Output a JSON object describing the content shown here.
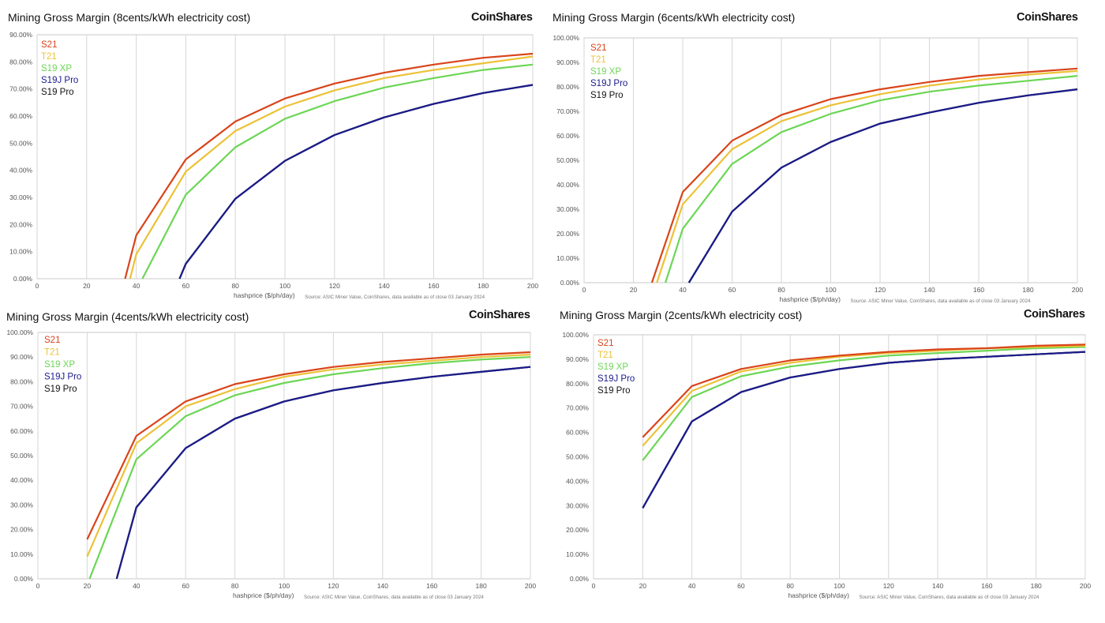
{
  "brand": "CoinShares",
  "series_colors": {
    "S21": "#d9441a",
    "T21": "#ecc238",
    "S19 XP": "#6cd655",
    "S19J Pro": "#1b1b8c",
    "S19 Pro": "#111111"
  },
  "chart_data": [
    {
      "type": "line",
      "title": "Mining Gross Margin (8cents/kWh electricity cost)",
      "xlabel": "hashprice ($/ph/day)",
      "source": "Source: ASIC Miner Value, CoinShares, data available as of close 03 January 2024",
      "xlim": [
        0,
        200
      ],
      "ylim": [
        0,
        90
      ],
      "x_ticks": [
        "0",
        "20",
        "40",
        "60",
        "80",
        "100",
        "120",
        "140",
        "160",
        "180",
        "200"
      ],
      "y_ticks": [
        "0.00%",
        "10.00%",
        "20.00%",
        "30.00%",
        "40.00%",
        "50.00%",
        "60.00%",
        "70.00%",
        "80.00%",
        "90.00%"
      ],
      "legend": "top-left",
      "series": [
        {
          "name": "S21",
          "points": [
            [
              35.5,
              0
            ],
            [
              40,
              16
            ],
            [
              60,
              44
            ],
            [
              80,
              58
            ],
            [
              100,
              66.5
            ],
            [
              120,
              72
            ],
            [
              140,
              76
            ],
            [
              160,
              79
            ],
            [
              180,
              81.5
            ],
            [
              200,
              83
            ]
          ]
        },
        {
          "name": "T21",
          "points": [
            [
              37.5,
              0
            ],
            [
              40,
              9
            ],
            [
              60,
              39.5
            ],
            [
              80,
              54.5
            ],
            [
              100,
              63.5
            ],
            [
              120,
              69.5
            ],
            [
              140,
              74
            ],
            [
              160,
              77
            ],
            [
              180,
              79.5
            ],
            [
              200,
              82
            ]
          ]
        },
        {
          "name": "S19 XP",
          "points": [
            [
              42.5,
              0
            ],
            [
              60,
              31
            ],
            [
              80,
              48.5
            ],
            [
              100,
              59
            ],
            [
              120,
              65.5
            ],
            [
              140,
              70.5
            ],
            [
              160,
              74
            ],
            [
              180,
              77
            ],
            [
              200,
              79
            ]
          ]
        },
        {
          "name": "S19J Pro",
          "points": [
            [
              57.5,
              0
            ],
            [
              60,
              5.5
            ],
            [
              80,
              29.5
            ],
            [
              100,
              43.5
            ],
            [
              120,
              53
            ],
            [
              140,
              59.5
            ],
            [
              160,
              64.5
            ],
            [
              180,
              68.5
            ],
            [
              200,
              71.5
            ]
          ]
        },
        {
          "name": "S19 Pro",
          "points": [
            [
              57.5,
              0
            ],
            [
              60,
              5.5
            ],
            [
              80,
              29.5
            ],
            [
              100,
              43.5
            ],
            [
              120,
              53
            ],
            [
              140,
              59.5
            ],
            [
              160,
              64.5
            ],
            [
              180,
              68.5
            ],
            [
              200,
              71.5
            ]
          ]
        }
      ]
    },
    {
      "type": "line",
      "title": "Mining Gross Margin (6cents/kWh electricity cost)",
      "xlabel": "hashprice ($/ph/day)",
      "source": "Source: ASIC Miner Value, CoinShares, data available as of close 03 January 2024",
      "xlim": [
        0,
        200
      ],
      "ylim": [
        0,
        100
      ],
      "x_ticks": [
        "0",
        "20",
        "40",
        "60",
        "80",
        "100",
        "120",
        "140",
        "160",
        "180",
        "200"
      ],
      "y_ticks": [
        "0.00%",
        "10.00%",
        "20.00%",
        "30.00%",
        "40.00%",
        "50.00%",
        "60.00%",
        "70.00%",
        "80.00%",
        "90.00%",
        "100.00%"
      ],
      "legend": "top-left",
      "series": [
        {
          "name": "S21",
          "points": [
            [
              27.5,
              0
            ],
            [
              40,
              37
            ],
            [
              60,
              58
            ],
            [
              80,
              68.5
            ],
            [
              100,
              75
            ],
            [
              120,
              79
            ],
            [
              140,
              82
            ],
            [
              160,
              84.5
            ],
            [
              180,
              86
            ],
            [
              200,
              87.5
            ]
          ]
        },
        {
          "name": "T21",
          "points": [
            [
              29.5,
              0
            ],
            [
              40,
              32
            ],
            [
              60,
              54.5
            ],
            [
              80,
              66
            ],
            [
              100,
              72.5
            ],
            [
              120,
              77
            ],
            [
              140,
              80.5
            ],
            [
              160,
              83
            ],
            [
              180,
              85
            ],
            [
              200,
              86.5
            ]
          ]
        },
        {
          "name": "S19 XP",
          "points": [
            [
              33,
              0
            ],
            [
              40,
              22
            ],
            [
              60,
              48.5
            ],
            [
              80,
              61.5
            ],
            [
              100,
              69
            ],
            [
              120,
              74.5
            ],
            [
              140,
              78
            ],
            [
              160,
              80.5
            ],
            [
              180,
              82.5
            ],
            [
              200,
              84.5
            ]
          ]
        },
        {
          "name": "S19J Pro",
          "points": [
            [
              42.5,
              0
            ],
            [
              60,
              29
            ],
            [
              80,
              47
            ],
            [
              100,
              57.5
            ],
            [
              120,
              65
            ],
            [
              140,
              69.5
            ],
            [
              160,
              73.5
            ],
            [
              180,
              76.5
            ],
            [
              200,
              79
            ]
          ]
        },
        {
          "name": "S19 Pro",
          "points": [
            [
              42.5,
              0
            ],
            [
              60,
              29
            ],
            [
              80,
              47
            ],
            [
              100,
              57.5
            ],
            [
              120,
              65
            ],
            [
              140,
              69.5
            ],
            [
              160,
              73.5
            ],
            [
              180,
              76.5
            ],
            [
              200,
              79
            ]
          ]
        }
      ]
    },
    {
      "type": "line",
      "title": "Mining Gross Margin (4cents/kWh electricity cost)",
      "xlabel": "hashprice ($/ph/day)",
      "source": "Source: ASIC Miner Value, CoinShares, data available as of close 03 January 2024",
      "xlim": [
        0,
        200
      ],
      "ylim": [
        0,
        100
      ],
      "x_ticks": [
        "0",
        "20",
        "40",
        "60",
        "80",
        "100",
        "120",
        "140",
        "160",
        "180",
        "200"
      ],
      "y_ticks": [
        "0.00%",
        "10.00%",
        "20.00%",
        "30.00%",
        "40.00%",
        "50.00%",
        "60.00%",
        "70.00%",
        "80.00%",
        "90.00%",
        "100.00%"
      ],
      "legend": "top-left",
      "series": [
        {
          "name": "S21",
          "points": [
            [
              20,
              16
            ],
            [
              40,
              58
            ],
            [
              60,
              72
            ],
            [
              80,
              79
            ],
            [
              100,
              83
            ],
            [
              120,
              86
            ],
            [
              140,
              88
            ],
            [
              160,
              89.5
            ],
            [
              180,
              91
            ],
            [
              200,
              92
            ]
          ]
        },
        {
          "name": "T21",
          "points": [
            [
              20,
              9
            ],
            [
              40,
              55
            ],
            [
              60,
              70
            ],
            [
              80,
              77
            ],
            [
              100,
              82
            ],
            [
              120,
              85
            ],
            [
              140,
              87
            ],
            [
              160,
              88.5
            ],
            [
              180,
              90
            ],
            [
              200,
              91
            ]
          ]
        },
        {
          "name": "S19 XP",
          "points": [
            [
              21,
              0
            ],
            [
              40,
              48.5
            ],
            [
              60,
              66
            ],
            [
              80,
              74.5
            ],
            [
              100,
              79.5
            ],
            [
              120,
              83
            ],
            [
              140,
              85.5
            ],
            [
              160,
              87.5
            ],
            [
              180,
              89
            ],
            [
              200,
              90
            ]
          ]
        },
        {
          "name": "S19J Pro",
          "points": [
            [
              32,
              0
            ],
            [
              40,
              29
            ],
            [
              60,
              53
            ],
            [
              80,
              65
            ],
            [
              100,
              72
            ],
            [
              120,
              76.5
            ],
            [
              140,
              79.5
            ],
            [
              160,
              82
            ],
            [
              180,
              84
            ],
            [
              200,
              86
            ]
          ]
        },
        {
          "name": "S19 Pro",
          "points": [
            [
              32,
              0
            ],
            [
              40,
              29
            ],
            [
              60,
              53
            ],
            [
              80,
              65
            ],
            [
              100,
              72
            ],
            [
              120,
              76.5
            ],
            [
              140,
              79.5
            ],
            [
              160,
              82
            ],
            [
              180,
              84
            ],
            [
              200,
              86
            ]
          ]
        }
      ]
    },
    {
      "type": "line",
      "title": "Mining Gross Margin (2cents/kWh electricity cost)",
      "xlabel": "hashprice ($/ph/day)",
      "source": "Source: ASIC Miner Value, CoinShares, data available as of close 03 January 2024",
      "xlim": [
        0,
        200
      ],
      "ylim": [
        0,
        100
      ],
      "x_ticks": [
        "0",
        "20",
        "40",
        "60",
        "80",
        "100",
        "120",
        "140",
        "160",
        "180",
        "200"
      ],
      "y_ticks": [
        "0.00%",
        "10.00%",
        "20.00%",
        "30.00%",
        "40.00%",
        "50.00%",
        "60.00%",
        "70.00%",
        "80.00%",
        "90.00%",
        "100.00%"
      ],
      "legend": "top-left",
      "series": [
        {
          "name": "S21",
          "points": [
            [
              20,
              58
            ],
            [
              40,
              79
            ],
            [
              60,
              86
            ],
            [
              80,
              89.5
            ],
            [
              100,
              91.5
            ],
            [
              120,
              93
            ],
            [
              140,
              94
            ],
            [
              160,
              94.5
            ],
            [
              180,
              95.5
            ],
            [
              200,
              96
            ]
          ]
        },
        {
          "name": "T21",
          "points": [
            [
              20,
              54.5
            ],
            [
              40,
              77
            ],
            [
              60,
              85
            ],
            [
              80,
              88.5
            ],
            [
              100,
              91
            ],
            [
              120,
              92.5
            ],
            [
              140,
              93.5
            ],
            [
              160,
              94.5
            ],
            [
              180,
              95
            ],
            [
              200,
              95.5
            ]
          ]
        },
        {
          "name": "S19 XP",
          "points": [
            [
              20,
              48.5
            ],
            [
              40,
              74.5
            ],
            [
              60,
              83
            ],
            [
              80,
              87
            ],
            [
              100,
              89.5
            ],
            [
              120,
              91.5
            ],
            [
              140,
              92.5
            ],
            [
              160,
              93.5
            ],
            [
              180,
              94.5
            ],
            [
              200,
              95
            ]
          ]
        },
        {
          "name": "S19J Pro",
          "points": [
            [
              20,
              29
            ],
            [
              40,
              64.5
            ],
            [
              60,
              76.5
            ],
            [
              80,
              82.5
            ],
            [
              100,
              86
            ],
            [
              120,
              88.5
            ],
            [
              140,
              90
            ],
            [
              160,
              91
            ],
            [
              180,
              92
            ],
            [
              200,
              93
            ]
          ]
        },
        {
          "name": "S19 Pro",
          "points": [
            [
              20,
              29
            ],
            [
              40,
              64.5
            ],
            [
              60,
              76.5
            ],
            [
              80,
              82.5
            ],
            [
              100,
              86
            ],
            [
              120,
              88.5
            ],
            [
              140,
              90
            ],
            [
              160,
              91
            ],
            [
              180,
              92
            ],
            [
              200,
              93
            ]
          ]
        }
      ]
    }
  ]
}
